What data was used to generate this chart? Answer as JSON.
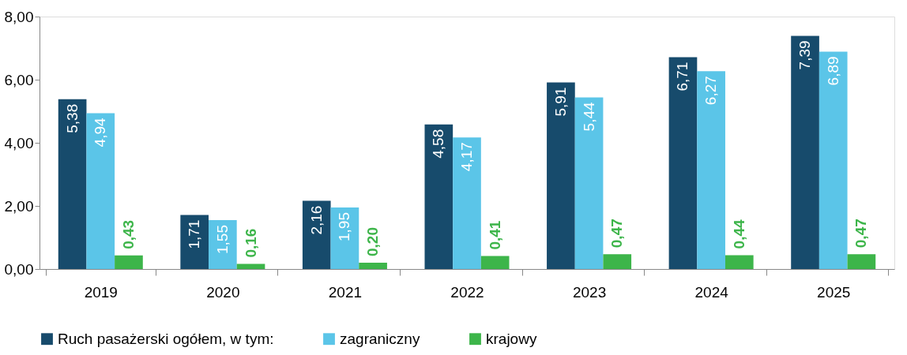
{
  "chart_data": {
    "type": "bar",
    "categories": [
      "2019",
      "2020",
      "2021",
      "2022",
      "2023",
      "2024",
      "2025"
    ],
    "series": [
      {
        "name": "Ruch pasażerski ogółem, w tym:",
        "color": "#174b6c",
        "values": [
          5.38,
          1.71,
          2.16,
          4.58,
          5.91,
          6.71,
          7.39
        ],
        "value_labels": [
          "5,38",
          "1,71",
          "2,16",
          "4,58",
          "5,91",
          "6,71",
          "7,39"
        ]
      },
      {
        "name": "zagraniczny",
        "color": "#5bc5e8",
        "values": [
          4.94,
          1.55,
          1.95,
          4.17,
          5.44,
          6.27,
          6.89
        ],
        "value_labels": [
          "4,94",
          "1,55",
          "1,95",
          "4,17",
          "5,44",
          "6,27",
          "6,89"
        ]
      },
      {
        "name": "krajowy",
        "color": "#3db54a",
        "values": [
          0.43,
          0.16,
          0.2,
          0.41,
          0.47,
          0.44,
          0.47
        ],
        "value_labels": [
          "0,43",
          "0,16",
          "0,20",
          "0,41",
          "0,47",
          "0,44",
          "0,47"
        ]
      }
    ],
    "ylim": [
      0,
      8
    ],
    "yticks": [
      {
        "value": 0,
        "label": "0,00"
      },
      {
        "value": 2,
        "label": "2,00"
      },
      {
        "value": 4,
        "label": "4,00"
      },
      {
        "value": 6,
        "label": "6,00"
      },
      {
        "value": 8,
        "label": "8,00"
      }
    ],
    "grid": false,
    "legend": "bottom"
  }
}
